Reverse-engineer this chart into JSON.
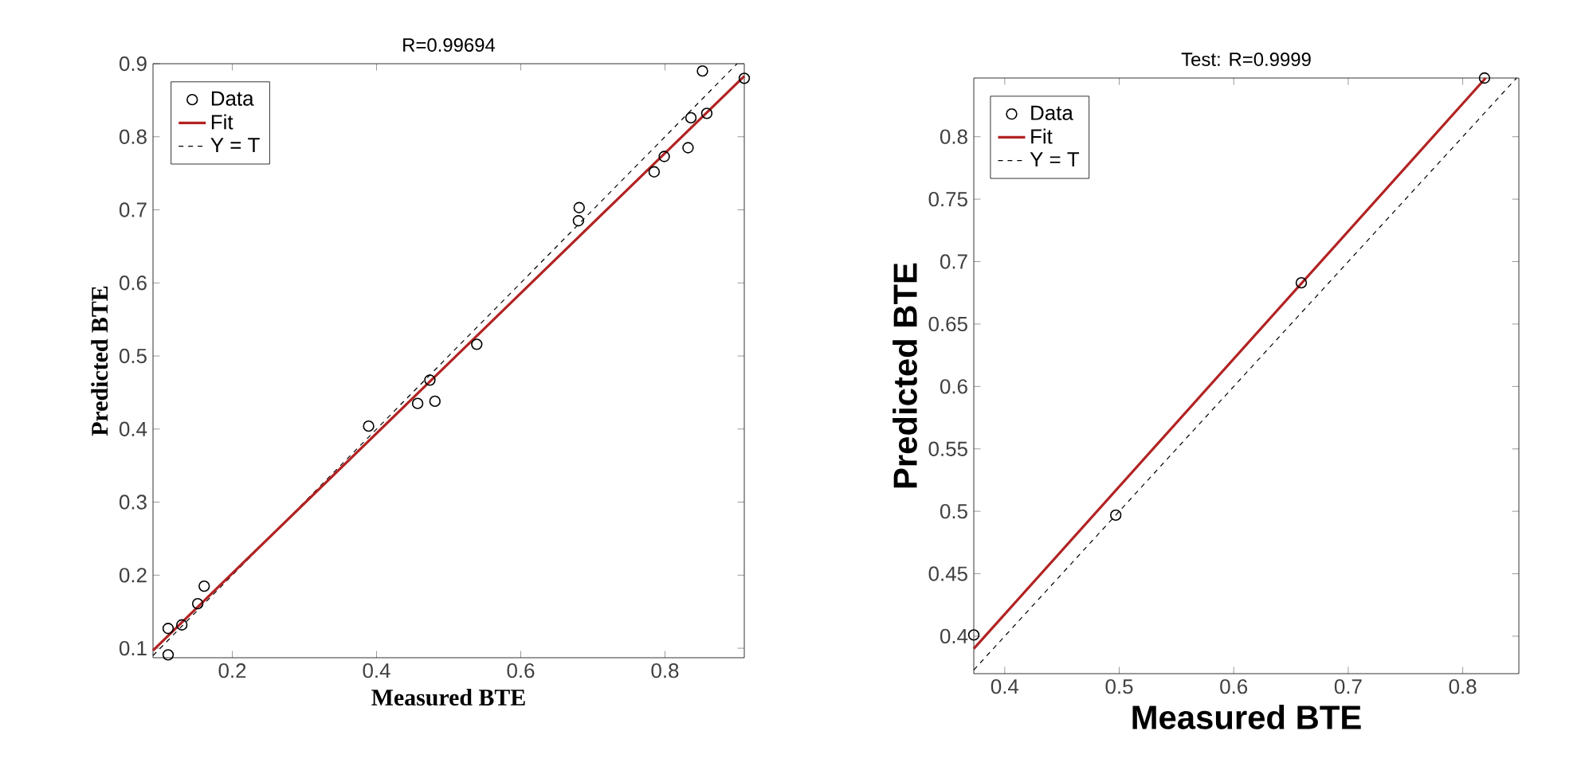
{
  "chart_data": [
    {
      "type": "scatter",
      "title": "R=0.99694",
      "xlabel": "Measured BTE",
      "ylabel": "Predicted BTE",
      "xlim": [
        0.09,
        0.91
      ],
      "ylim": [
        0.087,
        0.9
      ],
      "xticks": [
        0.2,
        0.4,
        0.6,
        0.8
      ],
      "yticks": [
        0.1,
        0.2,
        0.3,
        0.4,
        0.5,
        0.6,
        0.7,
        0.8,
        0.9
      ],
      "legend": "top left",
      "series": [
        {
          "name": "Data",
          "marker": "circle",
          "color": "#000000",
          "x": [
            0.111,
            0.111,
            0.13,
            0.152,
            0.161,
            0.389,
            0.457,
            0.474,
            0.481,
            0.539,
            0.681,
            0.68,
            0.785,
            0.799,
            0.832,
            0.836,
            0.858,
            0.852,
            0.91
          ],
          "values": [
            0.091,
            0.127,
            0.132,
            0.161,
            0.185,
            0.404,
            0.435,
            0.467,
            0.438,
            0.516,
            0.703,
            0.685,
            0.752,
            0.773,
            0.785,
            0.826,
            0.832,
            0.89,
            0.88
          ]
        },
        {
          "name": "Fit",
          "type": "line",
          "line_style": "solid",
          "color": "#b22222",
          "x": [
            0.09,
            0.91
          ],
          "values": [
            0.097,
            0.883
          ]
        },
        {
          "name": "Y = T",
          "type": "line",
          "line_style": "dashed",
          "color": "#000000",
          "x": [
            0.09,
            0.9
          ],
          "values": [
            0.09,
            0.9
          ]
        }
      ]
    },
    {
      "type": "scatter",
      "title": "Test: R=0.9999",
      "xlabel": "Measured BTE",
      "ylabel": "Predicted BTE",
      "xlim": [
        0.373,
        0.849
      ],
      "ylim": [
        0.37,
        0.847
      ],
      "xticks": [
        0.4,
        0.5,
        0.6,
        0.7,
        0.8
      ],
      "yticks": [
        0.4,
        0.45,
        0.5,
        0.55,
        0.6,
        0.65,
        0.7,
        0.75,
        0.8
      ],
      "legend": "top left",
      "series": [
        {
          "name": "Data",
          "marker": "circle",
          "color": "#000000",
          "x": [
            0.373,
            0.497,
            0.659,
            0.819
          ],
          "values": [
            0.401,
            0.497,
            0.683,
            0.847
          ]
        },
        {
          "name": "Fit",
          "type": "line",
          "line_style": "solid",
          "color": "#b22222",
          "x": [
            0.373,
            0.82
          ],
          "values": [
            0.39,
            0.847
          ]
        },
        {
          "name": "Y = T",
          "type": "line",
          "line_style": "dashed",
          "color": "#000000",
          "x": [
            0.373,
            0.847
          ],
          "values": [
            0.373,
            0.847
          ]
        }
      ]
    }
  ]
}
